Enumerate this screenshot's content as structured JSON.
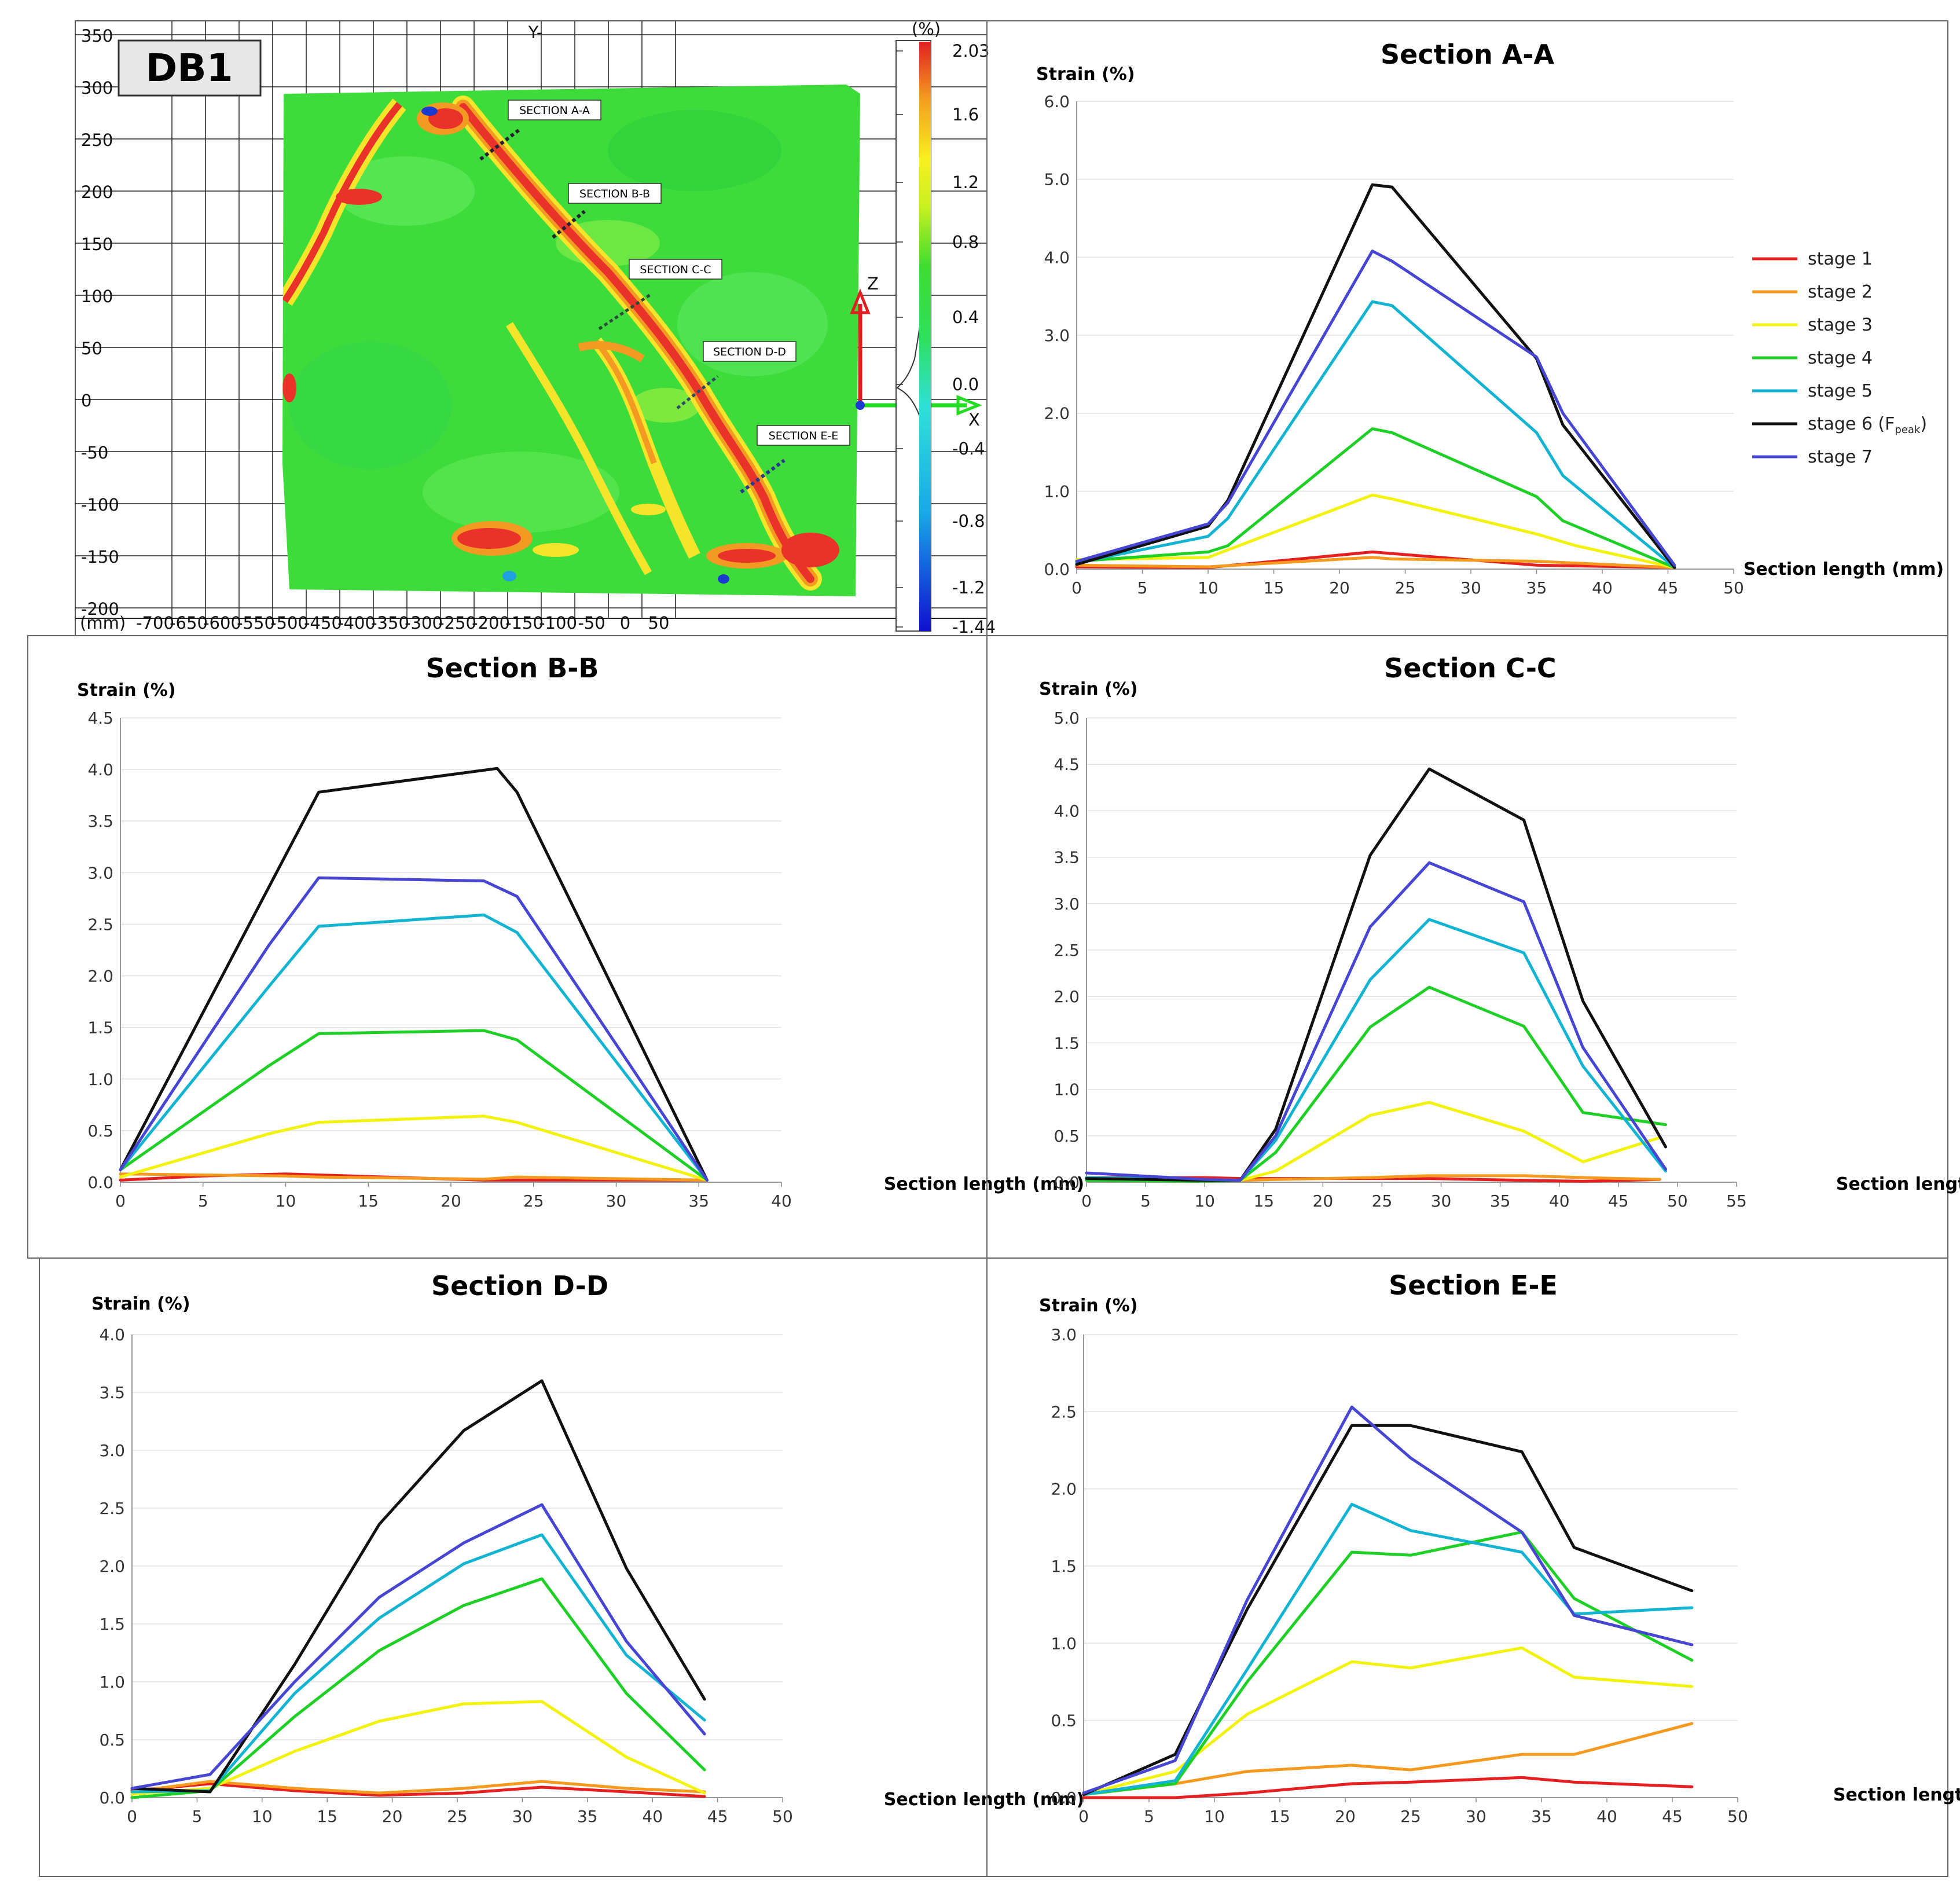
{
  "map": {
    "title": "DB1",
    "axis_top_label": "Y-",
    "unit_label": "(%)",
    "mm_label": "(mm)",
    "z_label": "Z",
    "x_label": "X",
    "y_ticks": [
      "350",
      "300",
      "250",
      "200",
      "150",
      "100",
      "50",
      "0",
      "-50",
      "-100",
      "-150",
      "-200"
    ],
    "x_ticks": [
      "-700",
      "-650",
      "-600",
      "-550",
      "-500",
      "-450",
      "-400",
      "-350",
      "-300",
      "-250",
      "-200",
      "-150",
      "-100",
      "-50",
      "0",
      "50"
    ],
    "colorbar_ticks": [
      "2.03",
      "1.6",
      "1.2",
      "0.8",
      "0.4",
      "0.0",
      "-0.4",
      "-0.8",
      "-1.2",
      "-1.44"
    ],
    "sections": [
      "SECTION A-A",
      "SECTION B-B",
      "SECTION C-C",
      "SECTION D-D",
      "SECTION E-E"
    ],
    "colors": {
      "field": "#3ddc3a",
      "crack": "#e8322a",
      "crack_edge": "#f5e52a",
      "arrow_z": "#e02020",
      "arrow_x": "#22dd22"
    }
  },
  "legend": {
    "items": [
      "stage 1",
      "stage 2",
      "stage 3",
      "stage 4",
      "stage 5",
      "stage 6 (F",
      "stage 7"
    ],
    "peak_sub": "peak",
    "close": ")",
    "colors": [
      "#e62020",
      "#f59a1e",
      "#f2f20a",
      "#1ecf26",
      "#12b4d2",
      "#111111",
      "#4646d2"
    ]
  },
  "chart_data": [
    {
      "type": "line",
      "title": "Section A-A",
      "ylabel": "Strain  (%)",
      "xlabel": "Section length (mm)",
      "xlim": [
        0,
        50
      ],
      "ylim": [
        0,
        6.0
      ],
      "xticks": [
        "0",
        "5",
        "10",
        "15",
        "20",
        "25",
        "30",
        "35",
        "40",
        "45",
        "50"
      ],
      "yticks": [
        "0.0",
        "1.0",
        "2.0",
        "3.0",
        "4.0",
        "5.0",
        "6.0"
      ],
      "series": [
        {
          "name": "stage 1",
          "x": [
            0,
            10,
            22.5,
            24,
            35,
            45.5
          ],
          "y": [
            0.03,
            0.02,
            0.22,
            0.2,
            0.05,
            0.02
          ]
        },
        {
          "name": "stage 2",
          "x": [
            0,
            10,
            22.5,
            24,
            35,
            45.5
          ],
          "y": [
            0.05,
            0.03,
            0.15,
            0.13,
            0.1,
            0.02
          ]
        },
        {
          "name": "stage 3",
          "x": [
            0,
            10,
            22.5,
            24,
            35,
            38,
            45.5
          ],
          "y": [
            0.12,
            0.15,
            0.95,
            0.9,
            0.45,
            0.3,
            0.02
          ]
        },
        {
          "name": "stage 4",
          "x": [
            0,
            10,
            11.5,
            22.5,
            24,
            35,
            37,
            45.5
          ],
          "y": [
            0.1,
            0.22,
            0.3,
            1.8,
            1.75,
            0.93,
            0.62,
            0.02
          ]
        },
        {
          "name": "stage 5",
          "x": [
            0,
            10,
            11.5,
            22.5,
            24,
            35,
            37,
            45.5
          ],
          "y": [
            0.08,
            0.42,
            0.65,
            3.43,
            3.38,
            1.75,
            1.2,
            0.02
          ]
        },
        {
          "name": "stage 6 (Fpeak)",
          "x": [
            0,
            10,
            11.5,
            22.5,
            24,
            35,
            37,
            45.5
          ],
          "y": [
            0.06,
            0.55,
            0.88,
            4.93,
            4.9,
            2.7,
            1.85,
            0.02
          ]
        },
        {
          "name": "stage 7",
          "x": [
            0,
            10,
            11.5,
            22.5,
            24,
            35,
            37,
            45.5
          ],
          "y": [
            0.1,
            0.58,
            0.85,
            4.08,
            3.95,
            2.72,
            2.0,
            0.05
          ]
        }
      ]
    },
    {
      "type": "line",
      "title": "Section  B-B",
      "ylabel": "Strain (%)",
      "xlabel": "Section length (mm)",
      "xlim": [
        0,
        40
      ],
      "ylim": [
        0,
        4.5
      ],
      "xticks": [
        "0",
        "5",
        "10",
        "15",
        "20",
        "25",
        "30",
        "35",
        "40"
      ],
      "yticks": [
        "0.0",
        "0.5",
        "1.0",
        "1.5",
        "2.0",
        "2.5",
        "3.0",
        "3.5",
        "4.0",
        "4.5"
      ],
      "series": [
        {
          "name": "stage 1",
          "x": [
            0,
            5,
            10,
            12,
            22,
            24,
            35.5
          ],
          "y": [
            0.02,
            0.06,
            0.08,
            0.07,
            0.02,
            0.02,
            0.02
          ]
        },
        {
          "name": "stage 2",
          "x": [
            0,
            5,
            10,
            12,
            22,
            24,
            35.5
          ],
          "y": [
            0.08,
            0.07,
            0.06,
            0.05,
            0.03,
            0.05,
            0.02
          ]
        },
        {
          "name": "stage 3",
          "x": [
            0,
            9,
            12,
            22,
            24,
            35.5
          ],
          "y": [
            0.05,
            0.47,
            0.58,
            0.64,
            0.58,
            0.02
          ]
        },
        {
          "name": "stage 4",
          "x": [
            0,
            9,
            12,
            22,
            24,
            35.5
          ],
          "y": [
            0.12,
            1.13,
            1.44,
            1.47,
            1.38,
            0.02
          ]
        },
        {
          "name": "stage 5",
          "x": [
            0,
            9,
            12,
            22,
            24,
            35.5
          ],
          "y": [
            0.12,
            1.9,
            2.48,
            2.59,
            2.42,
            0.02
          ]
        },
        {
          "name": "stage 6 (Fpeak)",
          "x": [
            0,
            12,
            22.8,
            24,
            35.5
          ],
          "y": [
            0.12,
            3.78,
            4.01,
            3.78,
            0.02
          ]
        },
        {
          "name": "stage 7",
          "x": [
            0,
            9,
            12,
            22,
            24,
            35.5
          ],
          "y": [
            0.12,
            2.3,
            2.95,
            2.92,
            2.77,
            0.02
          ]
        }
      ]
    },
    {
      "type": "line",
      "title": "Section C-C",
      "ylabel": "Strain  (%)",
      "xlabel": "Section length (mm)",
      "xlim": [
        0,
        55
      ],
      "ylim": [
        0,
        5.0
      ],
      "xticks": [
        "0",
        "5",
        "10",
        "15",
        "20",
        "25",
        "30",
        "35",
        "40",
        "45",
        "50",
        "55"
      ],
      "yticks": [
        "0.0",
        "0.5",
        "1.0",
        "1.5",
        "2.0",
        "2.5",
        "3.0",
        "3.5",
        "4.0",
        "4.5",
        "5.0"
      ],
      "series": [
        {
          "name": "stage 1",
          "x": [
            0,
            10,
            13,
            16,
            24,
            29,
            37,
            42,
            48.5
          ],
          "y": [
            0.05,
            0.05,
            0.04,
            0.04,
            0.04,
            0.04,
            0.02,
            0.01,
            0.03
          ]
        },
        {
          "name": "stage 2",
          "x": [
            0,
            10,
            13,
            16,
            24,
            29,
            37,
            42,
            48.5
          ],
          "y": [
            0.05,
            0.03,
            0.02,
            0.03,
            0.05,
            0.07,
            0.07,
            0.05,
            0.03
          ]
        },
        {
          "name": "stage 3",
          "x": [
            0,
            10,
            13,
            16,
            24,
            29,
            37,
            42,
            48.5
          ],
          "y": [
            0.04,
            0.02,
            0.02,
            0.12,
            0.72,
            0.86,
            0.55,
            0.22,
            0.48
          ]
        },
        {
          "name": "stage 4",
          "x": [
            0,
            10,
            13,
            16,
            24,
            29,
            37,
            42,
            49
          ],
          "y": [
            0.02,
            0.01,
            0.02,
            0.32,
            1.67,
            2.1,
            1.68,
            0.75,
            0.62
          ]
        },
        {
          "name": "stage 5",
          "x": [
            0,
            10,
            13,
            16,
            24,
            29,
            37,
            42,
            49
          ],
          "y": [
            0.05,
            0.03,
            0.02,
            0.45,
            2.18,
            2.83,
            2.47,
            1.25,
            0.12
          ]
        },
        {
          "name": "stage 6 (Fpeak)",
          "x": [
            0,
            10,
            13,
            16,
            24,
            29,
            37,
            42,
            49
          ],
          "y": [
            0.04,
            0.02,
            0.02,
            0.57,
            3.52,
            4.45,
            3.9,
            1.95,
            0.38
          ]
        },
        {
          "name": "stage 7",
          "x": [
            0,
            10,
            13,
            16,
            24,
            29,
            37,
            42,
            49
          ],
          "y": [
            0.1,
            0.03,
            0.02,
            0.5,
            2.75,
            3.44,
            3.02,
            1.45,
            0.14
          ]
        }
      ]
    },
    {
      "type": "line",
      "title": "Section D-D",
      "ylabel": "Strain  (%)",
      "xlabel": "Section length (mm)",
      "xlim": [
        0,
        50
      ],
      "ylim": [
        0,
        4.0
      ],
      "xticks": [
        "0",
        "5",
        "10",
        "15",
        "20",
        "25",
        "30",
        "35",
        "40",
        "45",
        "50"
      ],
      "yticks": [
        "0.0",
        "0.5",
        "1.0",
        "1.5",
        "2.0",
        "2.5",
        "3.0",
        "3.5",
        "4.0"
      ],
      "series": [
        {
          "name": "stage 1",
          "x": [
            0,
            6,
            12.5,
            19,
            25.5,
            31.5,
            38,
            44
          ],
          "y": [
            0.06,
            0.12,
            0.06,
            0.02,
            0.04,
            0.09,
            0.05,
            0.01
          ]
        },
        {
          "name": "stage 2",
          "x": [
            0,
            6,
            12.5,
            19,
            25.5,
            31.5,
            38,
            44
          ],
          "y": [
            0.05,
            0.14,
            0.08,
            0.04,
            0.08,
            0.14,
            0.08,
            0.05
          ]
        },
        {
          "name": "stage 3",
          "x": [
            0,
            6,
            12.5,
            19,
            25.5,
            31.5,
            38,
            44
          ],
          "y": [
            0.03,
            0.08,
            0.4,
            0.66,
            0.81,
            0.83,
            0.35,
            0.04
          ]
        },
        {
          "name": "stage 4",
          "x": [
            0,
            6,
            12.5,
            19,
            25.5,
            31.5,
            38,
            44
          ],
          "y": [
            0.0,
            0.06,
            0.7,
            1.27,
            1.66,
            1.89,
            0.9,
            0.24
          ]
        },
        {
          "name": "stage 5",
          "x": [
            0,
            6,
            12.5,
            19,
            25.5,
            31.5,
            38,
            44
          ],
          "y": [
            0.05,
            0.06,
            0.9,
            1.55,
            2.02,
            2.27,
            1.23,
            0.67
          ]
        },
        {
          "name": "stage 6 (Fpeak)",
          "x": [
            0,
            6,
            12.5,
            19,
            25.5,
            31.5,
            38,
            44
          ],
          "y": [
            0.08,
            0.05,
            1.15,
            2.36,
            3.17,
            3.6,
            1.98,
            0.85
          ]
        },
        {
          "name": "stage 7",
          "x": [
            0,
            6,
            12.5,
            19,
            25.5,
            31.5,
            38,
            44
          ],
          "y": [
            0.08,
            0.2,
            1.0,
            1.73,
            2.2,
            2.53,
            1.35,
            0.55
          ]
        }
      ]
    },
    {
      "type": "line",
      "title": "Section  E-E",
      "ylabel": "Strain (%)",
      "xlabel": "Section length (mm)",
      "xlim": [
        0,
        50
      ],
      "ylim": [
        0,
        3.0
      ],
      "xticks": [
        "0",
        "5",
        "10",
        "15",
        "20",
        "25",
        "30",
        "35",
        "40",
        "45",
        "50"
      ],
      "yticks": [
        "0.0",
        "0.5",
        "1.0",
        "1.5",
        "2.0",
        "2.5",
        "3.0"
      ],
      "series": [
        {
          "name": "stage 1",
          "x": [
            0,
            7,
            12.5,
            20.5,
            25,
            33.5,
            37.5,
            46.5
          ],
          "y": [
            0.0,
            0.0,
            0.03,
            0.09,
            0.1,
            0.13,
            0.1,
            0.07
          ]
        },
        {
          "name": "stage 2",
          "x": [
            0,
            7,
            12.5,
            20.5,
            25,
            33.5,
            37.5,
            46.5
          ],
          "y": [
            0.02,
            0.09,
            0.17,
            0.21,
            0.18,
            0.28,
            0.28,
            0.48
          ]
        },
        {
          "name": "stage 3",
          "x": [
            0,
            7,
            12.5,
            20.5,
            25,
            33.5,
            37.5,
            46.5
          ],
          "y": [
            0.02,
            0.17,
            0.54,
            0.88,
            0.84,
            0.97,
            0.78,
            0.72
          ]
        },
        {
          "name": "stage 4",
          "x": [
            0,
            7,
            12.5,
            20.5,
            25,
            33.5,
            37.5,
            46.5
          ],
          "y": [
            0.02,
            0.09,
            0.75,
            1.59,
            1.57,
            1.72,
            1.29,
            0.89
          ]
        },
        {
          "name": "stage 5",
          "x": [
            0,
            7,
            12.5,
            20.5,
            25,
            33.5,
            37.5,
            46.5
          ],
          "y": [
            0.02,
            0.11,
            0.83,
            1.9,
            1.73,
            1.59,
            1.19,
            1.23
          ]
        },
        {
          "name": "stage 6 (Fpeak)",
          "x": [
            0,
            7,
            12.5,
            20.5,
            25,
            33.5,
            37.5,
            46.5
          ],
          "y": [
            0.02,
            0.28,
            1.22,
            2.41,
            2.41,
            2.24,
            1.62,
            1.34
          ]
        },
        {
          "name": "stage 7",
          "x": [
            0,
            7,
            12.5,
            20.5,
            25,
            33.5,
            37.5,
            46.5
          ],
          "y": [
            0.03,
            0.24,
            1.28,
            2.53,
            2.2,
            1.72,
            1.18,
            0.99
          ]
        }
      ]
    }
  ]
}
